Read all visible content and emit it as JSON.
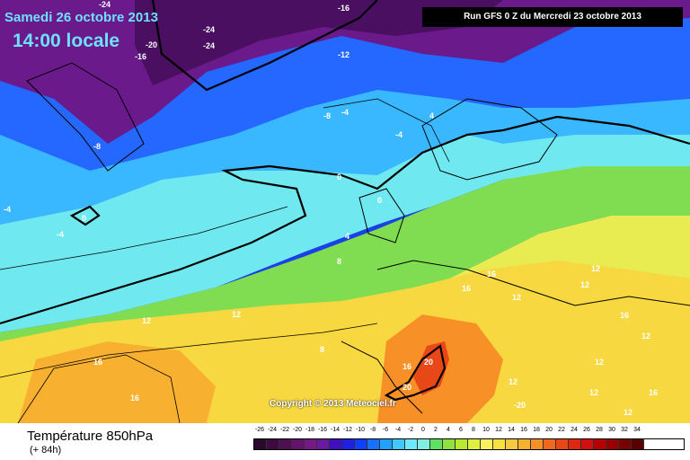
{
  "header": {
    "date": "Samedi 26 octobre 2013",
    "time": "14:00 locale",
    "run": "Run GFS 0 Z du Mercredi 23 octobre 2013"
  },
  "copyright": "Copyright © 2013 Meteociel.fr",
  "footer": {
    "title": "Température 850hPa",
    "subtitle": "(+ 84h)"
  },
  "legend": {
    "values": [
      "-26",
      "-24",
      "-22",
      "-20",
      "-18",
      "-16",
      "-14",
      "-12",
      "-10",
      "-8",
      "-6",
      "-4",
      "-2",
      "0",
      "2",
      "4",
      "6",
      "8",
      "10",
      "12",
      "14",
      "16",
      "18",
      "20",
      "22",
      "24",
      "26",
      "28",
      "30",
      "32",
      "34"
    ],
    "colors": [
      "#2a0a2a",
      "#3d0b3d",
      "#4f0f52",
      "#62146a",
      "#741a82",
      "#6a1a9e",
      "#4010c0",
      "#2020e0",
      "#1040ff",
      "#1870ff",
      "#20a0ff",
      "#40c8ff",
      "#70e8ff",
      "#80f0e0",
      "#60e060",
      "#90e040",
      "#b8e830",
      "#e0f040",
      "#f8f060",
      "#f8e040",
      "#f8c840",
      "#f8b030",
      "#f89028",
      "#f06820",
      "#e84818",
      "#e02810",
      "#d01010",
      "#b80000",
      "#980000",
      "#780000",
      "#580000"
    ]
  },
  "map_labels": [
    "-24",
    "-16",
    "-24",
    "-20",
    "-24",
    "-16",
    "-12",
    "-8",
    "-4",
    "-4",
    "-8",
    "4",
    "0",
    "0",
    "-4",
    "0",
    "-4",
    "4",
    "8",
    "12",
    "12",
    "16",
    "16",
    "16",
    "16",
    "12",
    "12",
    "12",
    "16",
    "12",
    "8",
    "16",
    "20",
    "20",
    "12",
    "12",
    "12",
    "12",
    "16",
    "-20"
  ]
}
